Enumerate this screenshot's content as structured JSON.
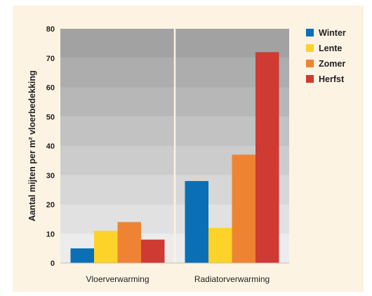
{
  "chart_data": {
    "type": "bar",
    "categories": [
      "Vloerverwarming",
      "Radiatorverwarming"
    ],
    "series": [
      {
        "name": "Winter",
        "values": [
          5,
          28
        ],
        "color": "#0a6fb5"
      },
      {
        "name": "Lente",
        "values": [
          11,
          12
        ],
        "color": "#fdd32a"
      },
      {
        "name": "Zomer",
        "values": [
          14,
          37
        ],
        "color": "#ee8433"
      },
      {
        "name": "Herfst",
        "values": [
          8,
          72
        ],
        "color": "#cf3a32"
      }
    ],
    "ylabel": "Aantal mijten per m² vloerbedekking",
    "xlabel": "",
    "ylim": [
      0,
      80
    ],
    "yticks": [
      0,
      10,
      20,
      30,
      40,
      50,
      60,
      70,
      80
    ],
    "legend_position": "right",
    "grid": false,
    "background_bands": true
  }
}
